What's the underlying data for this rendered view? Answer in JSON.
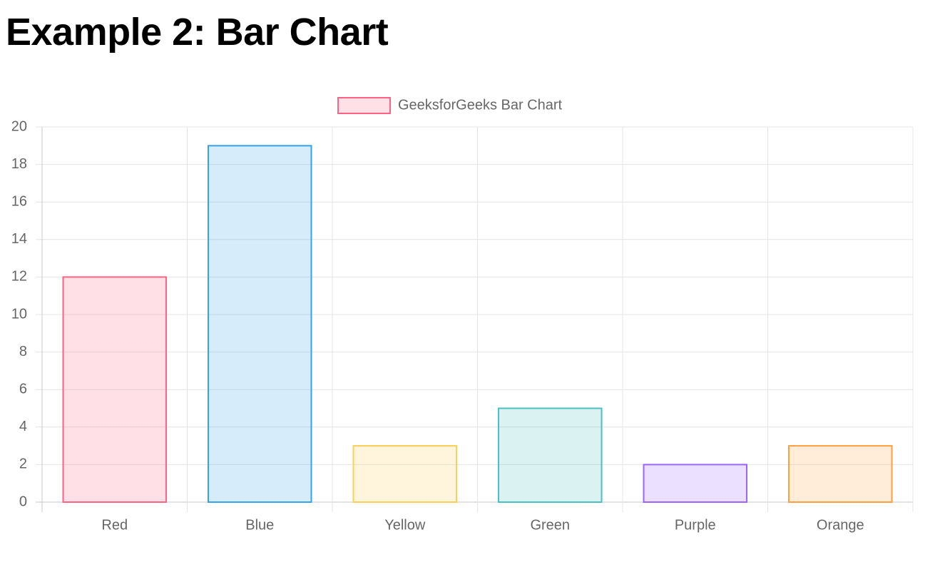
{
  "chart_data": {
    "type": "bar",
    "title": "Example 2: Bar Chart",
    "categories": [
      "Red",
      "Blue",
      "Yellow",
      "Green",
      "Purple",
      "Orange"
    ],
    "series": [
      {
        "name": "GeeksforGeeks Bar Chart",
        "values": [
          12,
          19,
          3,
          5,
          2,
          3
        ],
        "colors": [
          "rgba(255, 99, 132, 0.2)",
          "rgba(54, 162, 235, 0.2)",
          "rgba(255, 206, 86, 0.2)",
          "rgba(75, 192, 192, 0.2)",
          "rgba(153, 102, 255, 0.2)",
          "rgba(255, 159, 64, 0.2)"
        ],
        "border_colors": [
          "rgba(255, 99, 132, 1)",
          "rgba(54, 162, 235, 1)",
          "rgba(255, 206, 86, 1)",
          "rgba(75, 192, 192, 1)",
          "rgba(153, 102, 255, 1)",
          "rgba(255, 159, 64, 1)"
        ]
      }
    ],
    "ylim": [
      0,
      20
    ],
    "yticks": [
      0,
      2,
      4,
      6,
      8,
      10,
      12,
      14,
      16,
      18,
      20
    ],
    "grid": true,
    "legend": "top"
  }
}
